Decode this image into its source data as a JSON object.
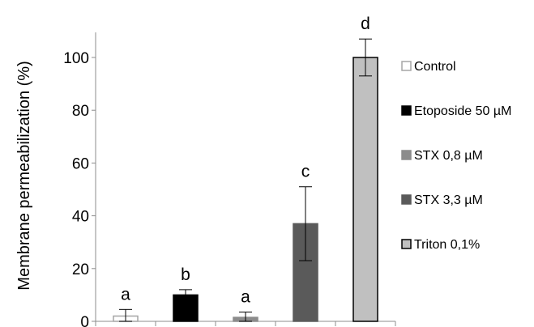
{
  "chart_data": {
    "type": "bar",
    "title": "",
    "xlabel": "",
    "ylabel": "Membrane permeabilization (%)",
    "ylim": [
      0,
      100
    ],
    "yticks": [
      0,
      20,
      40,
      60,
      80,
      100
    ],
    "grid": false,
    "legend_position": "right",
    "categories": [
      "Control",
      "Etoposide 50 µM",
      "STX 0,8 µM",
      "STX 3,3 µM",
      "Triton 0,1%"
    ],
    "values": [
      2,
      10,
      1.5,
      37,
      100
    ],
    "errors": [
      2.5,
      2,
      2,
      14,
      7
    ],
    "significance_letters": [
      "a",
      "b",
      "a",
      "c",
      "d"
    ],
    "colors": {
      "Control": {
        "fill": "#ffffff",
        "stroke": "#a6a6a6"
      },
      "Etoposide 50 µM": {
        "fill": "#000000",
        "stroke": "#000000"
      },
      "STX 0,8 µM": {
        "fill": "#8c8c8c",
        "stroke": "#8c8c8c"
      },
      "STX 3,3 µM": {
        "fill": "#5a5a5a",
        "stroke": "#5a5a5a"
      },
      "Triton 0,1%": {
        "fill": "#c0c0c0",
        "stroke": "#000000"
      }
    }
  }
}
